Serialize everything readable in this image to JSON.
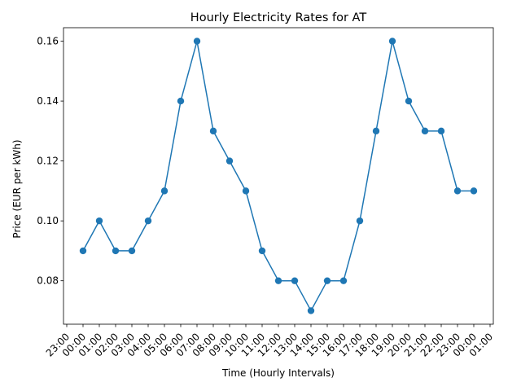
{
  "chart_data": {
    "type": "line",
    "title": "Hourly Electricity Rates for AT",
    "xlabel": "Time (Hourly Intervals)",
    "ylabel": "Price (EUR per kWh)",
    "x_tick_labels": [
      "23:00",
      "00:00",
      "01:00",
      "02:00",
      "03:00",
      "04:00",
      "05:00",
      "06:00",
      "07:00",
      "08:00",
      "09:00",
      "10:00",
      "11:00",
      "12:00",
      "13:00",
      "14:00",
      "15:00",
      "16:00",
      "17:00",
      "18:00",
      "19:00",
      "20:00",
      "21:00",
      "22:00",
      "23:00",
      "00:00",
      "01:00"
    ],
    "y_ticks": [
      0.08,
      0.1,
      0.12,
      0.14,
      0.16
    ],
    "y_tick_labels": [
      "0.08",
      "0.10",
      "0.12",
      "0.14",
      "0.16"
    ],
    "ylim": [
      0.0655,
      0.1645
    ],
    "xlim": [
      -1.2,
      25.2
    ],
    "x_tick_start": -1,
    "series": [
      {
        "color": "#1f77b4",
        "marker": "circle",
        "x": [
          0,
          1,
          2,
          3,
          4,
          5,
          6,
          7,
          8,
          9,
          10,
          11,
          12,
          13,
          14,
          15,
          16,
          17,
          18,
          19,
          20,
          21,
          22,
          23,
          24
        ],
        "values": [
          0.09,
          0.1,
          0.09,
          0.09,
          0.1,
          0.11,
          0.14,
          0.16,
          0.13,
          0.12,
          0.11,
          0.09,
          0.08,
          0.08,
          0.07,
          0.08,
          0.08,
          0.1,
          0.13,
          0.16,
          0.14,
          0.13,
          0.13,
          0.11,
          0.11
        ]
      }
    ],
    "grid": false,
    "legend": "none"
  }
}
